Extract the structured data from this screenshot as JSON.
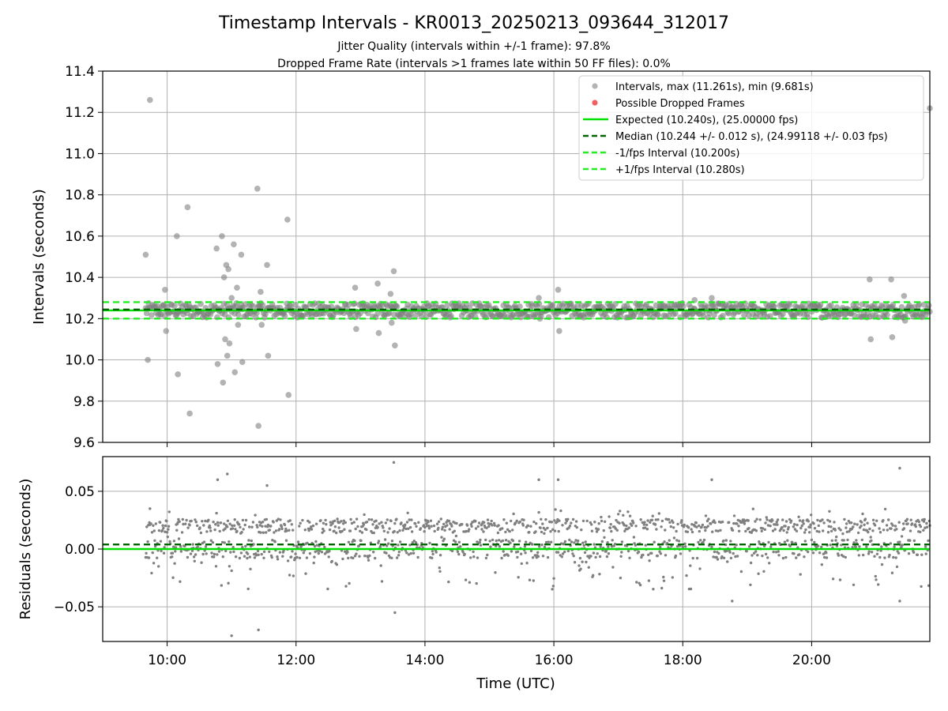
{
  "chart_data": {
    "type": "scatter",
    "title": "Timestamp Intervals - KR0013_20250213_093644_312017",
    "subtitle_lines": [
      "Jitter Quality (intervals within +/-1 frame): 97.8%",
      "Dropped Frame Rate (intervals >1 frames late within 50 FF files): 0.0%"
    ],
    "colors": {
      "points": "#808080",
      "dropped": "#f06060",
      "expected": "#00e000",
      "median": "#006400",
      "interval_bounds": "#22ee22"
    },
    "top_panel": {
      "ylabel": "Intervals (seconds)",
      "ylim": [
        9.6,
        11.4
      ],
      "yticks": [
        "9.6",
        "9.8",
        "10.0",
        "10.2",
        "10.4",
        "10.6",
        "10.8",
        "11.0",
        "11.2",
        "11.4"
      ],
      "legend_position": "top-right",
      "legend": [
        "Intervals, max (11.261s), min (9.681s)",
        "Possible Dropped Frames",
        "Expected (10.240s), (25.00000 fps)",
        "Median (10.244 +/- 0.012 s), (24.99118 +/- 0.03 fps)",
        "-1/fps Interval (10.200s)",
        "+1/fps Interval (10.280s)"
      ],
      "expected": 10.24,
      "median": 10.244,
      "minus_interval": 10.2,
      "plus_interval": 10.28,
      "outliers": [
        {
          "t": "09:40",
          "v": 10.51
        },
        {
          "t": "09:42",
          "v": 10.0
        },
        {
          "t": "09:44",
          "v": 11.26
        },
        {
          "t": "09:58",
          "v": 10.34
        },
        {
          "t": "09:59",
          "v": 10.14
        },
        {
          "t": "10:09",
          "v": 10.6
        },
        {
          "t": "10:10",
          "v": 9.93
        },
        {
          "t": "10:19",
          "v": 10.74
        },
        {
          "t": "10:21",
          "v": 9.74
        },
        {
          "t": "10:46",
          "v": 10.54
        },
        {
          "t": "10:47",
          "v": 9.98
        },
        {
          "t": "10:51",
          "v": 10.6
        },
        {
          "t": "10:52",
          "v": 9.89
        },
        {
          "t": "10:53",
          "v": 10.4
        },
        {
          "t": "10:54",
          "v": 10.1
        },
        {
          "t": "10:55",
          "v": 10.46
        },
        {
          "t": "10:56",
          "v": 10.02
        },
        {
          "t": "10:57",
          "v": 10.44
        },
        {
          "t": "10:58",
          "v": 10.08
        },
        {
          "t": "11:00",
          "v": 10.3
        },
        {
          "t": "11:02",
          "v": 10.56
        },
        {
          "t": "11:03",
          "v": 9.94
        },
        {
          "t": "11:05",
          "v": 10.35
        },
        {
          "t": "11:06",
          "v": 10.17
        },
        {
          "t": "11:09",
          "v": 10.51
        },
        {
          "t": "11:10",
          "v": 9.99
        },
        {
          "t": "11:24",
          "v": 10.83
        },
        {
          "t": "11:25",
          "v": 9.68
        },
        {
          "t": "11:27",
          "v": 10.33
        },
        {
          "t": "11:28",
          "v": 10.17
        },
        {
          "t": "11:33",
          "v": 10.46
        },
        {
          "t": "11:34",
          "v": 10.02
        },
        {
          "t": "11:52",
          "v": 10.68
        },
        {
          "t": "11:53",
          "v": 9.83
        },
        {
          "t": "12:55",
          "v": 10.35
        },
        {
          "t": "12:56",
          "v": 10.15
        },
        {
          "t": "13:16",
          "v": 10.37
        },
        {
          "t": "13:17",
          "v": 10.13
        },
        {
          "t": "13:28",
          "v": 10.32
        },
        {
          "t": "13:29",
          "v": 10.18
        },
        {
          "t": "13:31",
          "v": 10.43
        },
        {
          "t": "13:32",
          "v": 10.07
        },
        {
          "t": "15:46",
          "v": 10.3
        },
        {
          "t": "15:47",
          "v": 10.2
        },
        {
          "t": "16:04",
          "v": 10.34
        },
        {
          "t": "16:05",
          "v": 10.14
        },
        {
          "t": "18:11",
          "v": 10.29
        },
        {
          "t": "18:27",
          "v": 10.3
        },
        {
          "t": "20:54",
          "v": 10.39
        },
        {
          "t": "20:55",
          "v": 10.1
        },
        {
          "t": "21:14",
          "v": 10.39
        },
        {
          "t": "21:15",
          "v": 10.11
        },
        {
          "t": "21:26",
          "v": 10.31
        },
        {
          "t": "21:27",
          "v": 10.19
        },
        {
          "t": "21:50",
          "v": 11.22
        }
      ]
    },
    "bottom_panel": {
      "ylabel": "Residuals (seconds)",
      "ylim": [
        -0.08,
        0.08
      ],
      "yticks": [
        "−0.05",
        "0.00",
        "0.05"
      ],
      "ytick_values": [
        -0.05,
        0.0,
        0.05
      ],
      "expected_residual": 0.0,
      "median_residual": 0.004,
      "outliers": [
        {
          "t": "09:44",
          "v": 0.035
        },
        {
          "t": "10:47",
          "v": 0.06
        },
        {
          "t": "10:56",
          "v": 0.065
        },
        {
          "t": "11:00",
          "v": -0.075
        },
        {
          "t": "11:25",
          "v": -0.07
        },
        {
          "t": "11:33",
          "v": 0.055
        },
        {
          "t": "13:31",
          "v": 0.075
        },
        {
          "t": "13:32",
          "v": -0.055
        },
        {
          "t": "15:46",
          "v": 0.06
        },
        {
          "t": "16:04",
          "v": 0.06
        },
        {
          "t": "18:27",
          "v": 0.06
        },
        {
          "t": "18:46",
          "v": -0.045
        },
        {
          "t": "21:22",
          "v": 0.07
        },
        {
          "t": "21:22",
          "v": -0.045
        }
      ]
    },
    "x": {
      "xlabel": "Time (UTC)",
      "xlim": [
        "09:00",
        "21:50"
      ],
      "data_range": [
        "09:40",
        "21:50"
      ],
      "xticks": [
        "10:00",
        "12:00",
        "14:00",
        "16:00",
        "18:00",
        "20:00"
      ]
    }
  }
}
